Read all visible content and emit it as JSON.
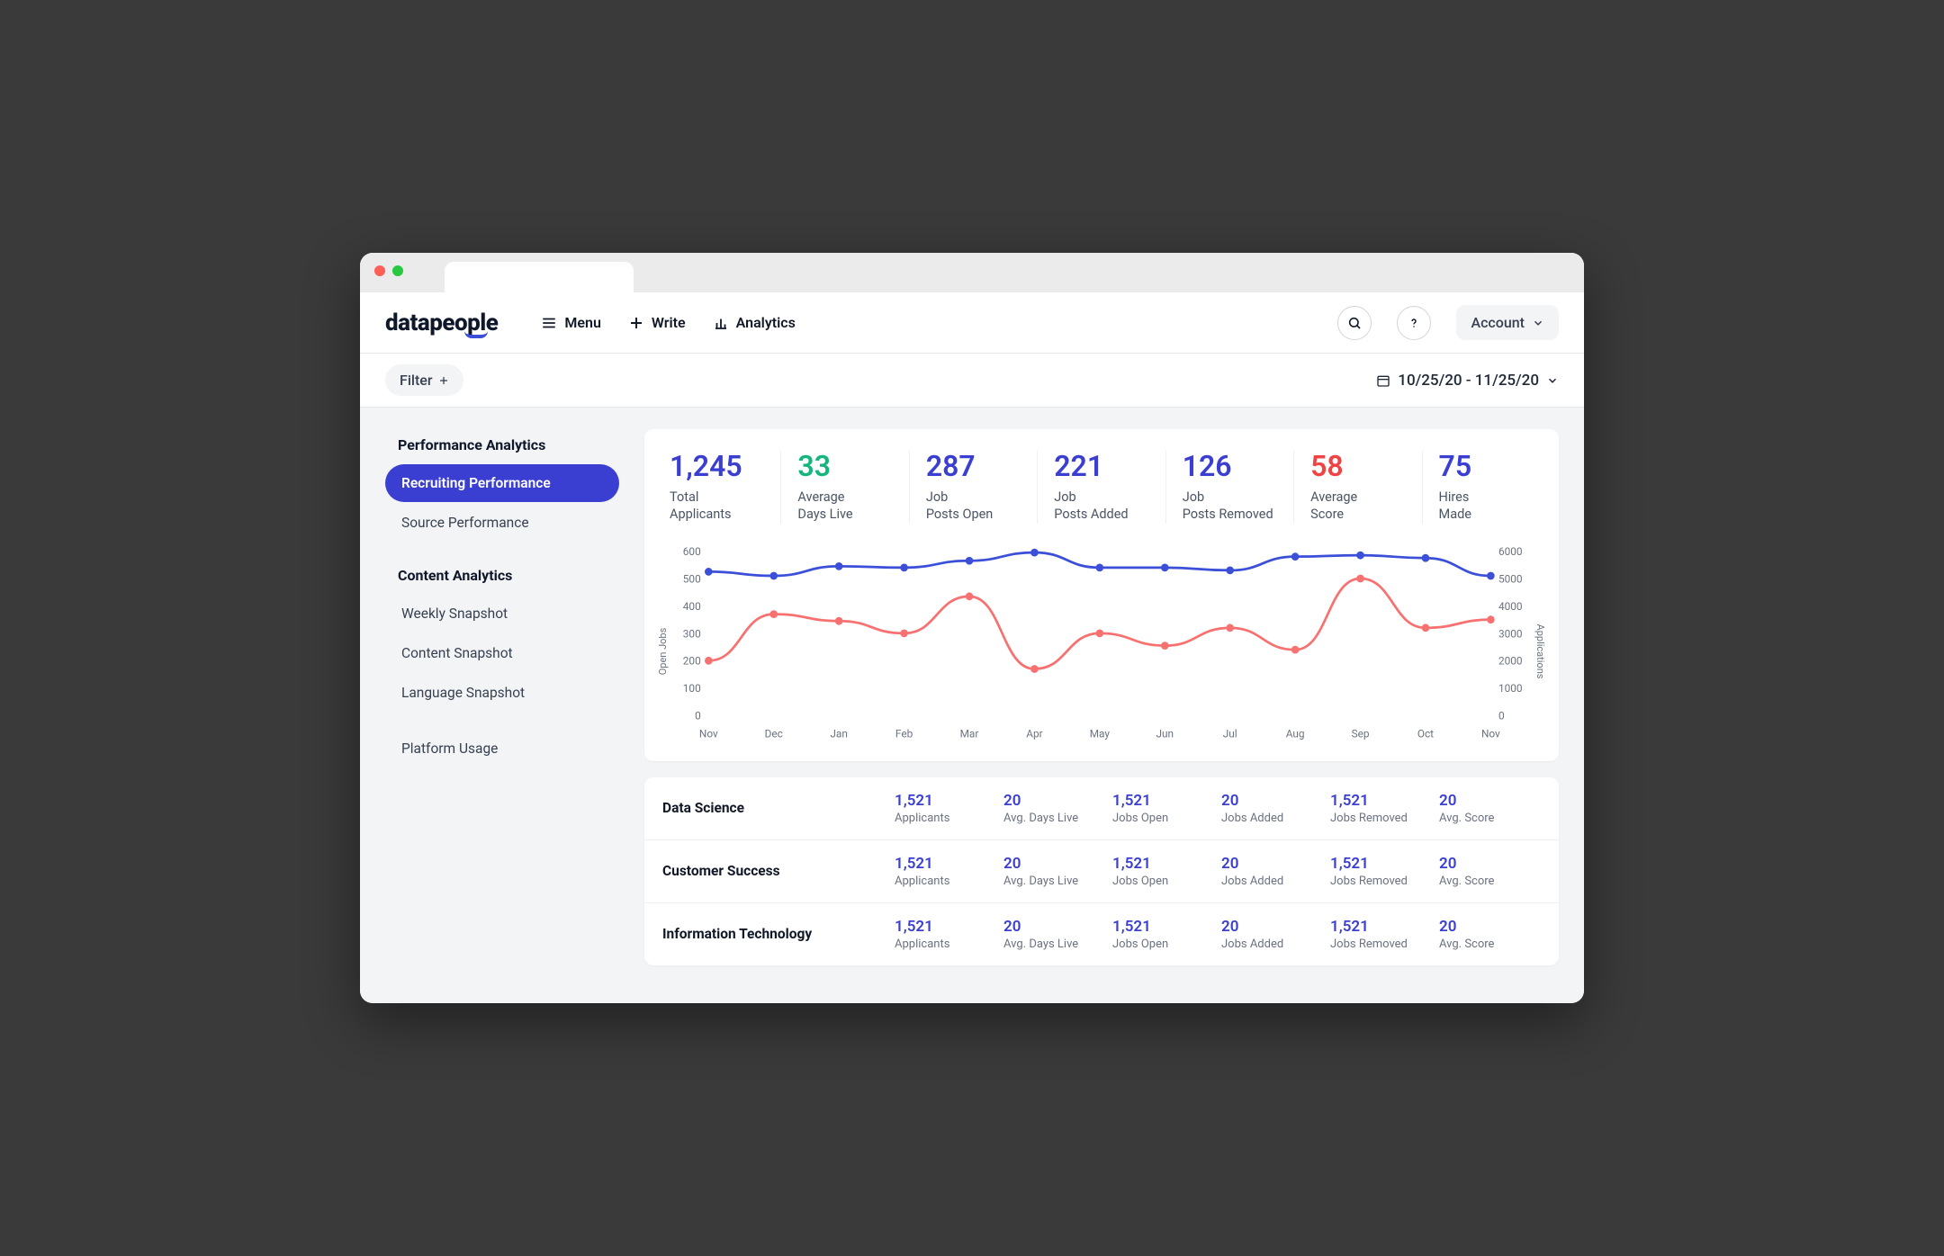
{
  "colors": {
    "primary": "#3b3fd1",
    "accent_green": "#15b67b",
    "accent_red": "#ef4444",
    "text_dark": "#0f172a",
    "series_blue": "#3b4fd9",
    "series_red": "#f87171"
  },
  "logo": "datapeople",
  "nav": {
    "menu": "Menu",
    "write": "Write",
    "analytics": "Analytics"
  },
  "account": "Account",
  "filter_label": "Filter",
  "date_range": "10/25/20 - 11/25/20",
  "sidebar": {
    "group1_title": "Performance Analytics",
    "group1_items": [
      "Recruiting Performance",
      "Source Performance"
    ],
    "group1_active_index": 0,
    "group2_title": "Content Analytics",
    "group2_items": [
      "Weekly Snapshot",
      "Content Snapshot",
      "Language Snapshot"
    ],
    "group3_items": [
      "Platform Usage"
    ]
  },
  "kpis": [
    {
      "value": "1,245",
      "label": "Total Applicants",
      "color": "#3b3fd1"
    },
    {
      "value": "33",
      "label": "Average Days Live",
      "color": "#15b67b"
    },
    {
      "value": "287",
      "label": "Job Posts Open",
      "color": "#3b3fd1"
    },
    {
      "value": "221",
      "label": "Job Posts Added",
      "color": "#3b3fd1"
    },
    {
      "value": "126",
      "label": "Job Posts Removed",
      "color": "#3b3fd1"
    },
    {
      "value": "58",
      "label": "Average Score",
      "color": "#ef4444"
    },
    {
      "value": "75",
      "label": "Hires Made",
      "color": "#3b3fd1"
    }
  ],
  "chart": {
    "type": "line",
    "x_labels": [
      "Nov",
      "Dec",
      "Jan",
      "Feb",
      "Mar",
      "Apr",
      "May",
      "Jun",
      "Jul",
      "Aug",
      "Sep",
      "Oct",
      "Nov"
    ],
    "y_left_label": "Open Jobs",
    "y_right_label": "Applications",
    "y_left_ticks": [
      0,
      100,
      200,
      300,
      400,
      500,
      600
    ],
    "y_right_ticks": [
      0,
      1000,
      2000,
      3000,
      4000,
      5000,
      6000
    ],
    "y_left_range": [
      0,
      600
    ],
    "series": [
      {
        "name": "Open Jobs",
        "color": "#3b4fd9",
        "values": [
          525,
          510,
          545,
          540,
          565,
          595,
          540,
          540,
          530,
          580,
          585,
          575,
          510
        ]
      },
      {
        "name": "Applications",
        "color": "#f87171",
        "values": [
          200,
          370,
          345,
          300,
          435,
          170,
          300,
          255,
          320,
          240,
          500,
          320,
          350
        ]
      }
    ],
    "tick_fontsize": 11,
    "tick_color": "#6b7280",
    "line_width": 2.5,
    "marker_radius": 4,
    "background": "#ffffff"
  },
  "table": {
    "metric_labels": [
      "Applicants",
      "Avg. Days Live",
      "Jobs Open",
      "Jobs Added",
      "Jobs Removed",
      "Avg. Score"
    ],
    "rows": [
      {
        "name": "Data Science",
        "values": [
          "1,521",
          "20",
          "1,521",
          "20",
          "1,521",
          "20"
        ]
      },
      {
        "name": "Customer Success",
        "values": [
          "1,521",
          "20",
          "1,521",
          "20",
          "1,521",
          "20"
        ]
      },
      {
        "name": "Information Technology",
        "values": [
          "1,521",
          "20",
          "1,521",
          "20",
          "1,521",
          "20"
        ]
      }
    ]
  }
}
